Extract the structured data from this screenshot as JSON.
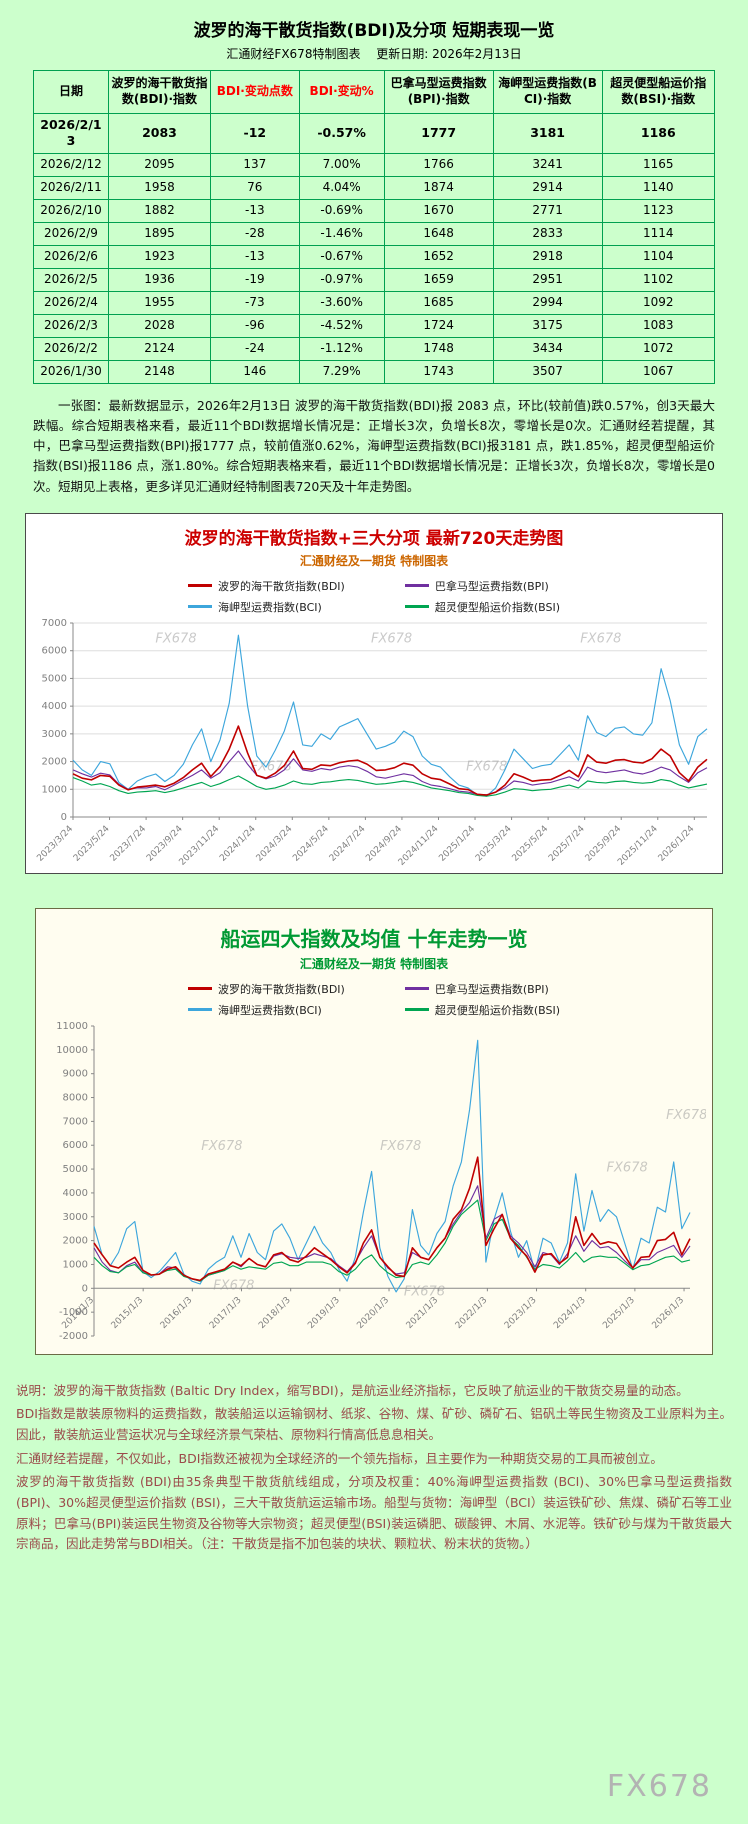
{
  "page": {
    "bottom_watermark": "FX678"
  },
  "colors": {
    "bdi": "#c00000",
    "bpi": "#7030a0",
    "bci": "#3da6dc",
    "bsi": "#00a551",
    "header_red": "#ff0000"
  },
  "table_section": {
    "title": "波罗的海干散货指数(BDI)及分项  短期表现一览",
    "source_line": "汇通财经FX678特制图表　 更新日期: 2026年2月13日",
    "headers": [
      "日期",
      "波罗的海干散货指数(BDI)·指数",
      "BDI·变动点数",
      "BDI·变动%",
      "巴拿马型运费指数(BPI)·指数",
      "海岬型运费指数(BCI)·指数",
      "超灵便型船运价指数(BSI)·指数"
    ],
    "red_header_indexes": [
      2,
      3
    ],
    "rows": [
      [
        "2026/2/13",
        "2083",
        "-12",
        "-0.57%",
        "1777",
        "3181",
        "1186"
      ],
      [
        "2026/2/12",
        "2095",
        "137",
        "7.00%",
        "1766",
        "3241",
        "1165"
      ],
      [
        "2026/2/11",
        "1958",
        "76",
        "4.04%",
        "1874",
        "2914",
        "1140"
      ],
      [
        "2026/2/10",
        "1882",
        "-13",
        "-0.69%",
        "1670",
        "2771",
        "1123"
      ],
      [
        "2026/2/9",
        "1895",
        "-28",
        "-1.46%",
        "1648",
        "2833",
        "1114"
      ],
      [
        "2026/2/6",
        "1923",
        "-13",
        "-0.67%",
        "1652",
        "2918",
        "1104"
      ],
      [
        "2026/2/5",
        "1936",
        "-19",
        "-0.97%",
        "1659",
        "2951",
        "1102"
      ],
      [
        "2026/2/4",
        "1955",
        "-73",
        "-3.60%",
        "1685",
        "2994",
        "1092"
      ],
      [
        "2026/2/3",
        "2028",
        "-96",
        "-4.52%",
        "1724",
        "3175",
        "1083"
      ],
      [
        "2026/2/2",
        "2124",
        "-24",
        "-1.12%",
        "1748",
        "3434",
        "1072"
      ],
      [
        "2026/1/30",
        "2148",
        "146",
        "7.29%",
        "1743",
        "3507",
        "1067"
      ]
    ],
    "note": "一张图：最新数据显示，2026年2月13日 波罗的海干散货指数(BDI)报 2083 点，环比(较前值)跌0.57%，创3天最大跌幅。综合短期表格来看，最近11个BDI数据增长情况是：正增长3次，负增长8次，零增长是0次。汇通财经若提醒，其中，巴拿马型运费指数(BPI)报1777 点，较前值涨0.62%，海岬型运费指数(BCI)报3181 点，跌1.85%，超灵便型船运价指数(BSI)报1186 点，涨1.80%。综合短期表格来看，最近11个BDI数据增长情况是：正增长3次，负增长8次，零增长是0次。短期见上表格，更多详见汇通财经特制图表720天及十年走势图。"
  },
  "chart_data": [
    {
      "type": "line",
      "title": "波罗的海干散货指数+三大分项  最新720天走势图",
      "subtitle": "汇通财经及一期货 特制图表",
      "watermark_text": "FX678",
      "ylim": [
        0,
        7000
      ],
      "ytick_step": 1000,
      "grid": true,
      "legend_position": "top",
      "x_label_span": 0.98,
      "x_labels": [
        "2023/3/24",
        "2023/5/24",
        "2023/7/24",
        "2023/9/24",
        "2023/11/24",
        "2024/1/24",
        "2024/3/24",
        "2024/5/24",
        "2024/7/24",
        "2024/9/24",
        "2024/11/24",
        "2025/1/24",
        "2025/3/24",
        "2025/5/24",
        "2025/7/24",
        "2025/9/24",
        "2025/11/24",
        "2026/1/24"
      ],
      "legend": [
        {
          "label": "波罗的海干散货指数(BDI)",
          "color_key": "bdi"
        },
        {
          "label": "巴拿马型运费指数(BPI)",
          "color_key": "bpi"
        },
        {
          "label": "海岬型运费指数(BCI)",
          "color_key": "bci"
        },
        {
          "label": "超灵便型船运价指数(BSI)",
          "color_key": "bsi"
        }
      ],
      "series": [
        {
          "name": "海岬型运费指数(BCI)",
          "color_key": "bci",
          "values": [
            2050,
            1700,
            1500,
            2000,
            1920,
            1250,
            1000,
            1300,
            1450,
            1550,
            1280,
            1500,
            1900,
            2600,
            3180,
            2000,
            2780,
            4100,
            6560,
            4000,
            2200,
            1800,
            2400,
            3100,
            4150,
            2600,
            2550,
            3000,
            2800,
            3250,
            3400,
            3550,
            3000,
            2450,
            2550,
            2700,
            3100,
            2900,
            2200,
            1900,
            1800,
            1450,
            1150,
            1050,
            800,
            750,
            1050,
            1700,
            2450,
            2100,
            1750,
            1850,
            1900,
            2250,
            2600,
            2050,
            3650,
            3050,
            2900,
            3200,
            3250,
            3000,
            2950,
            3400,
            5350,
            4200,
            2600,
            1900,
            2900,
            3181
          ]
        },
        {
          "name": "巴拿马型运费指数(BPI)",
          "color_key": "bpi",
          "values": [
            1700,
            1560,
            1440,
            1580,
            1520,
            1180,
            1000,
            1050,
            1050,
            1100,
            980,
            1150,
            1330,
            1500,
            1700,
            1400,
            1600,
            2000,
            2380,
            1900,
            1500,
            1380,
            1480,
            1700,
            2100,
            1700,
            1650,
            1750,
            1700,
            1800,
            1850,
            1800,
            1650,
            1450,
            1400,
            1480,
            1560,
            1500,
            1280,
            1150,
            1100,
            1020,
            930,
            900,
            820,
            800,
            900,
            1050,
            1300,
            1250,
            1150,
            1200,
            1250,
            1350,
            1450,
            1300,
            1800,
            1650,
            1600,
            1650,
            1700,
            1600,
            1550,
            1650,
            1800,
            1700,
            1450,
            1250,
            1600,
            1777
          ]
        },
        {
          "name": "超灵便型船运价指数(BSI)",
          "color_key": "bsi",
          "values": [
            1420,
            1300,
            1150,
            1200,
            1100,
            950,
            850,
            900,
            920,
            950,
            880,
            950,
            1050,
            1150,
            1250,
            1100,
            1200,
            1350,
            1480,
            1300,
            1100,
            1000,
            1050,
            1150,
            1300,
            1200,
            1180,
            1250,
            1270,
            1320,
            1350,
            1320,
            1250,
            1180,
            1200,
            1250,
            1300,
            1250,
            1150,
            1050,
            1000,
            950,
            880,
            850,
            780,
            750,
            800,
            900,
            1020,
            1000,
            950,
            980,
            1000,
            1080,
            1150,
            1050,
            1300,
            1250,
            1230,
            1280,
            1300,
            1250,
            1220,
            1250,
            1350,
            1300,
            1150,
            1050,
            1120,
            1186
          ]
        },
        {
          "name": "波罗的海干散货指数(BDI)",
          "color_key": "bdi",
          "values": [
            1560,
            1400,
            1340,
            1500,
            1470,
            1150,
            980,
            1080,
            1110,
            1150,
            1090,
            1220,
            1420,
            1700,
            1940,
            1460,
            1820,
            2450,
            3280,
            2310,
            1500,
            1400,
            1580,
            1860,
            2380,
            1750,
            1720,
            1880,
            1850,
            1960,
            2020,
            2050,
            1910,
            1680,
            1700,
            1780,
            1940,
            1870,
            1560,
            1400,
            1350,
            1190,
            1020,
            990,
            820,
            790,
            900,
            1150,
            1560,
            1440,
            1290,
            1330,
            1350,
            1500,
            1680,
            1450,
            2240,
            1980,
            1940,
            2050,
            2070,
            1980,
            1950,
            2100,
            2450,
            2200,
            1600,
            1300,
            1800,
            2083
          ]
        }
      ]
    },
    {
      "type": "line",
      "title": "船运四大指数及均值 十年走势一览",
      "subtitle": "汇通财经及一期货 特制图表",
      "watermark_text": "FX678",
      "ylim": [
        -2000,
        11000
      ],
      "ytick_step": 1000,
      "grid": false,
      "legend_position": "top",
      "x_label_span": 0.99,
      "x_labels": [
        "2014/1/3",
        "2015/1/3",
        "2016/1/3",
        "2017/1/3",
        "2018/1/3",
        "2019/1/3",
        "2020/1/3",
        "2021/1/3",
        "2022/1/3",
        "2023/1/3",
        "2024/1/3",
        "2025/1/3",
        "2026/1/3"
      ],
      "legend": [
        {
          "label": "波罗的海干散货指数(BDI)",
          "color_key": "bdi"
        },
        {
          "label": "巴拿马型运费指数(BPI)",
          "color_key": "bpi"
        },
        {
          "label": "海岬型运费指数(BCI)",
          "color_key": "bci"
        },
        {
          "label": "超灵便型船运价指数(BSI)",
          "color_key": "bsi"
        }
      ],
      "series": [
        {
          "name": "海岬型运费指数(BCI)",
          "color_key": "bci",
          "values": [
            2600,
            1400,
            950,
            1500,
            2500,
            2800,
            700,
            450,
            700,
            1100,
            1500,
            600,
            300,
            180,
            800,
            1100,
            1300,
            2200,
            1300,
            2300,
            1500,
            1200,
            2400,
            2700,
            2100,
            1200,
            1900,
            2600,
            1900,
            1500,
            800,
            300,
            1300,
            3200,
            4900,
            1700,
            500,
            -150,
            400,
            3300,
            1800,
            1400,
            2300,
            2800,
            4300,
            5300,
            7500,
            10400,
            1100,
            2900,
            4000,
            2400,
            1300,
            2000,
            700,
            2100,
            1900,
            1100,
            1900,
            4800,
            2400,
            4100,
            2800,
            3300,
            3000,
            1900,
            800,
            2100,
            1900,
            3400,
            3200,
            5300,
            2500,
            3181
          ]
        },
        {
          "name": "巴拿马型运费指数(BPI)",
          "color_key": "bpi",
          "values": [
            1700,
            1100,
            750,
            650,
            950,
            1100,
            650,
            550,
            600,
            900,
            850,
            550,
            400,
            300,
            550,
            650,
            750,
            1100,
            900,
            1250,
            1000,
            900,
            1350,
            1450,
            1300,
            1250,
            1300,
            1450,
            1350,
            1250,
            950,
            700,
            1100,
            1700,
            2200,
            1300,
            850,
            600,
            650,
            1500,
            1300,
            1200,
            1700,
            2100,
            2700,
            3200,
            3600,
            4300,
            2100,
            2900,
            3100,
            2200,
            1900,
            1500,
            900,
            1500,
            1400,
            1000,
            1450,
            2200,
            1550,
            2000,
            1700,
            1750,
            1500,
            1150,
            850,
            1200,
            1200,
            1500,
            1650,
            1800,
            1300,
            1777
          ]
        },
        {
          "name": "超灵便型船运价指数(BSI)",
          "color_key": "bsi",
          "values": [
            1300,
            950,
            700,
            650,
            900,
            1000,
            650,
            550,
            600,
            750,
            800,
            500,
            400,
            300,
            550,
            650,
            750,
            950,
            800,
            900,
            850,
            800,
            1050,
            1100,
            950,
            950,
            1100,
            1100,
            1100,
            1000,
            700,
            550,
            800,
            1200,
            1400,
            950,
            650,
            450,
            500,
            1000,
            1100,
            1000,
            1400,
            1900,
            2600,
            3100,
            3400,
            3700,
            2000,
            2700,
            2900,
            2100,
            1800,
            1300,
            800,
            1000,
            950,
            850,
            1150,
            1500,
            1100,
            1300,
            1350,
            1300,
            1300,
            1050,
            780,
            950,
            1000,
            1150,
            1300,
            1350,
            1100,
            1186
          ]
        },
        {
          "name": "波罗的海干散货指数(BDI)",
          "color_key": "bdi",
          "values": [
            1900,
            1400,
            950,
            850,
            1100,
            1300,
            750,
            560,
            590,
            800,
            900,
            550,
            400,
            330,
            600,
            700,
            800,
            1100,
            950,
            1250,
            1000,
            900,
            1400,
            1500,
            1200,
            1100,
            1350,
            1700,
            1450,
            1200,
            900,
            650,
            1050,
            1900,
            2450,
            1300,
            900,
            550,
            500,
            1700,
            1300,
            1200,
            1700,
            2100,
            2900,
            3300,
            4200,
            5500,
            1800,
            2500,
            3100,
            2100,
            1700,
            1350,
            680,
            1400,
            1450,
            1050,
            1300,
            3000,
            1800,
            2300,
            1850,
            1950,
            1880,
            1350,
            850,
            1300,
            1330,
            2000,
            2050,
            2350,
            1400,
            2083
          ]
        }
      ]
    }
  ],
  "footer": {
    "paragraphs": [
      "说明：波罗的海干散货指数 (Baltic Dry Index，缩写BDI)，是航运业经济指标，它反映了航运业的干散货交易量的动态。",
      "BDI指数是散装原物料的运费指数，散装船运以运输钢材、纸浆、谷物、煤、矿砂、磷矿石、铝矾土等民生物资及工业原料为主。因此，散装航运业营运状况与全球经济景气荣枯、原物料行情高低息息相关。",
      "汇通财经若提醒，不仅如此，BDI指数还被视为全球经济的一个领先指标，且主要作为一种期货交易的工具而被创立。",
      "波罗的海干散货指数 (BDI)由35条典型干散货航线组成，分项及权重：40%海岬型运费指数 (BCI)、30%巴拿马型运费指数 (BPI)、30%超灵便型运价指数 (BSI)，三大干散货航运运输市场。船型与货物：海岬型（BCI）装运铁矿砂、焦煤、磷矿石等工业原料；巴拿马(BPI)装运民生物资及谷物等大宗物资；超灵便型(BSI)装运磷肥、碳酸钾、木屑、水泥等。铁矿砂与煤为干散货最大宗商品，因此走势常与BDI相关。（注：干散货是指不加包装的块状、颗粒状、粉末状的货物。）"
    ]
  }
}
